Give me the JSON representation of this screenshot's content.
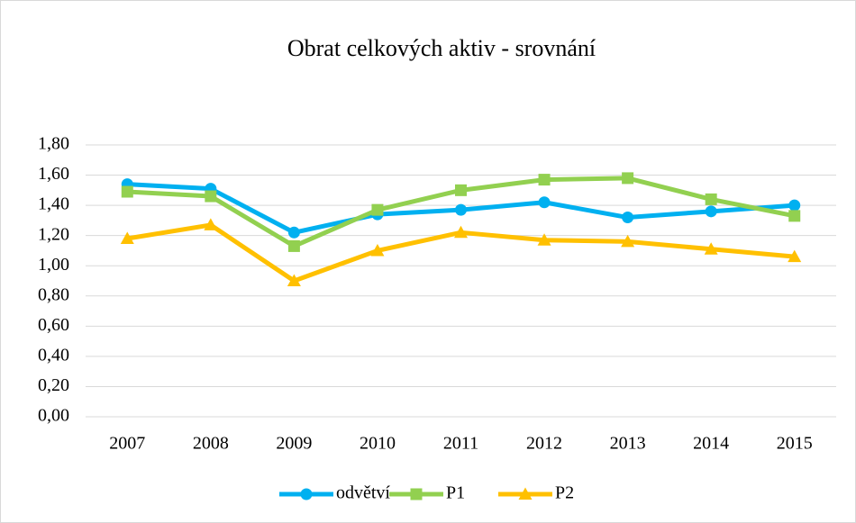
{
  "chart_data": {
    "type": "line",
    "title": "Obrat celkových aktiv - srovnání",
    "categories": [
      "2007",
      "2008",
      "2009",
      "2010",
      "2011",
      "2012",
      "2013",
      "2014",
      "2015"
    ],
    "series": [
      {
        "name": "odvětví",
        "color": "#00b0f0",
        "marker": "circle",
        "values": [
          1.54,
          1.51,
          1.22,
          1.34,
          1.37,
          1.42,
          1.32,
          1.36,
          1.4
        ]
      },
      {
        "name": "P1",
        "color": "#92d050",
        "marker": "square",
        "values": [
          1.49,
          1.46,
          1.13,
          1.37,
          1.5,
          1.57,
          1.58,
          1.44,
          1.33
        ]
      },
      {
        "name": "P2",
        "color": "#ffc000",
        "marker": "triangle",
        "values": [
          1.18,
          1.27,
          0.9,
          1.1,
          1.22,
          1.17,
          1.16,
          1.11,
          1.06
        ]
      }
    ],
    "ylim": [
      0,
      1.8
    ],
    "yticks": [
      {
        "value": 0,
        "label": "0,00"
      },
      {
        "value": 0.2,
        "label": "0,20"
      },
      {
        "value": 0.4,
        "label": "0,40"
      },
      {
        "value": 0.6,
        "label": "0,60"
      },
      {
        "value": 0.8,
        "label": "0,80"
      },
      {
        "value": 1.0,
        "label": "1,00"
      },
      {
        "value": 1.2,
        "label": "1,20"
      },
      {
        "value": 1.4,
        "label": "1,40"
      },
      {
        "value": 1.6,
        "label": "1,60"
      },
      {
        "value": 1.8,
        "label": "1,80"
      }
    ],
    "grid": true,
    "legend": "bottom"
  }
}
